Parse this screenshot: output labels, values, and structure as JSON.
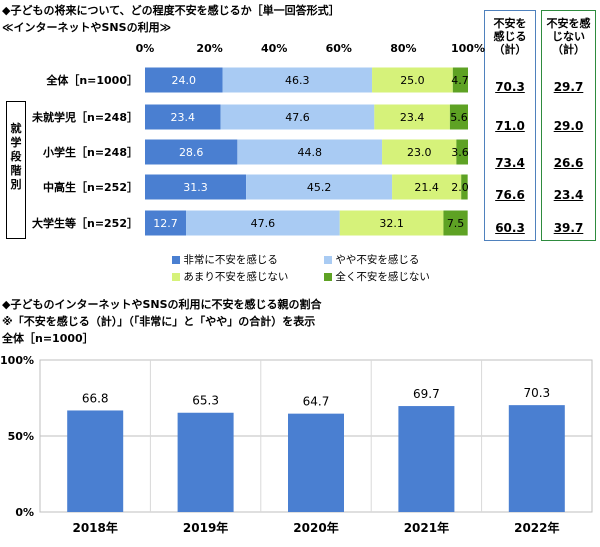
{
  "top": {
    "title": "◆子どもの将来について、どの程度不安を感じるか［単一回答形式］",
    "subtitle": "≪インターネットやSNSの利用≫",
    "group_label": "就学段階別",
    "col_headers": {
      "anxious": "不安を感じる（計）",
      "not_anxious": "不安を感じない（計）"
    },
    "legend": [
      "非常に不安を感じる",
      "やや不安を感じる",
      "あまり不安を感じない",
      "全く不安を感じない"
    ],
    "colors": [
      "#4a7fd1",
      "#a9cbf3",
      "#d6f27a",
      "#5ea224"
    ]
  },
  "bottom": {
    "title": "◆子どものインターネットやSNSの利用に不安を感じる親の割合",
    "note": "※「不安を感じる（計）」（「非常に」と「やや」の合計）を表示",
    "sample": "全体［n=1000］",
    "bar_color": "#4a7fd1"
  },
  "chart_data": [
    {
      "type": "bar",
      "orientation": "horizontal",
      "stacked": true,
      "title": "子どもの将来について、どの程度不安を感じるか",
      "xlim": [
        0,
        100
      ],
      "ticks": [
        "0%",
        "20%",
        "40%",
        "60%",
        "80%",
        "100%"
      ],
      "categories": [
        "全体［n=1000］",
        "未就学児［n=248］",
        "小学生［n=248］",
        "中高生［n=252］",
        "大学生等［n=252］"
      ],
      "series": [
        {
          "name": "非常に不安を感じる",
          "values": [
            24.0,
            23.4,
            28.6,
            31.3,
            12.7
          ]
        },
        {
          "name": "やや不安を感じる",
          "values": [
            46.3,
            47.6,
            44.8,
            45.2,
            47.6
          ]
        },
        {
          "name": "あまり不安を感じない",
          "values": [
            25.0,
            23.4,
            23.0,
            21.4,
            32.1
          ]
        },
        {
          "name": "全く不安を感じない",
          "values": [
            4.7,
            5.6,
            3.6,
            2.0,
            7.5
          ]
        }
      ],
      "labels": [
        [
          "24.0",
          "46.3",
          "25.0",
          "4.7"
        ],
        [
          "23.4",
          "47.6",
          "23.4",
          "5.6"
        ],
        [
          "28.6",
          "44.8",
          "23.0",
          "3.6"
        ],
        [
          "31.3",
          "45.2",
          "21.4",
          "2.0"
        ],
        [
          "12.7",
          "47.6",
          "32.1",
          "7.5"
        ]
      ],
      "anxious_total": [
        "70.3",
        "71.0",
        "73.4",
        "76.6",
        "60.3"
      ],
      "not_anxious_total": [
        "29.7",
        "29.0",
        "26.6",
        "23.4",
        "39.7"
      ]
    },
    {
      "type": "bar",
      "title": "子どものインターネットやSNSの利用に不安を感じる親の割合",
      "categories": [
        "2018年",
        "2019年",
        "2020年",
        "2021年",
        "2022年"
      ],
      "values": [
        66.8,
        65.3,
        64.7,
        69.7,
        70.3
      ],
      "value_labels": [
        "66.8",
        "65.3",
        "64.7",
        "69.7",
        "70.3"
      ],
      "ylim": [
        0,
        100
      ],
      "ticks": [
        "0%",
        "50%",
        "100%"
      ]
    }
  ]
}
